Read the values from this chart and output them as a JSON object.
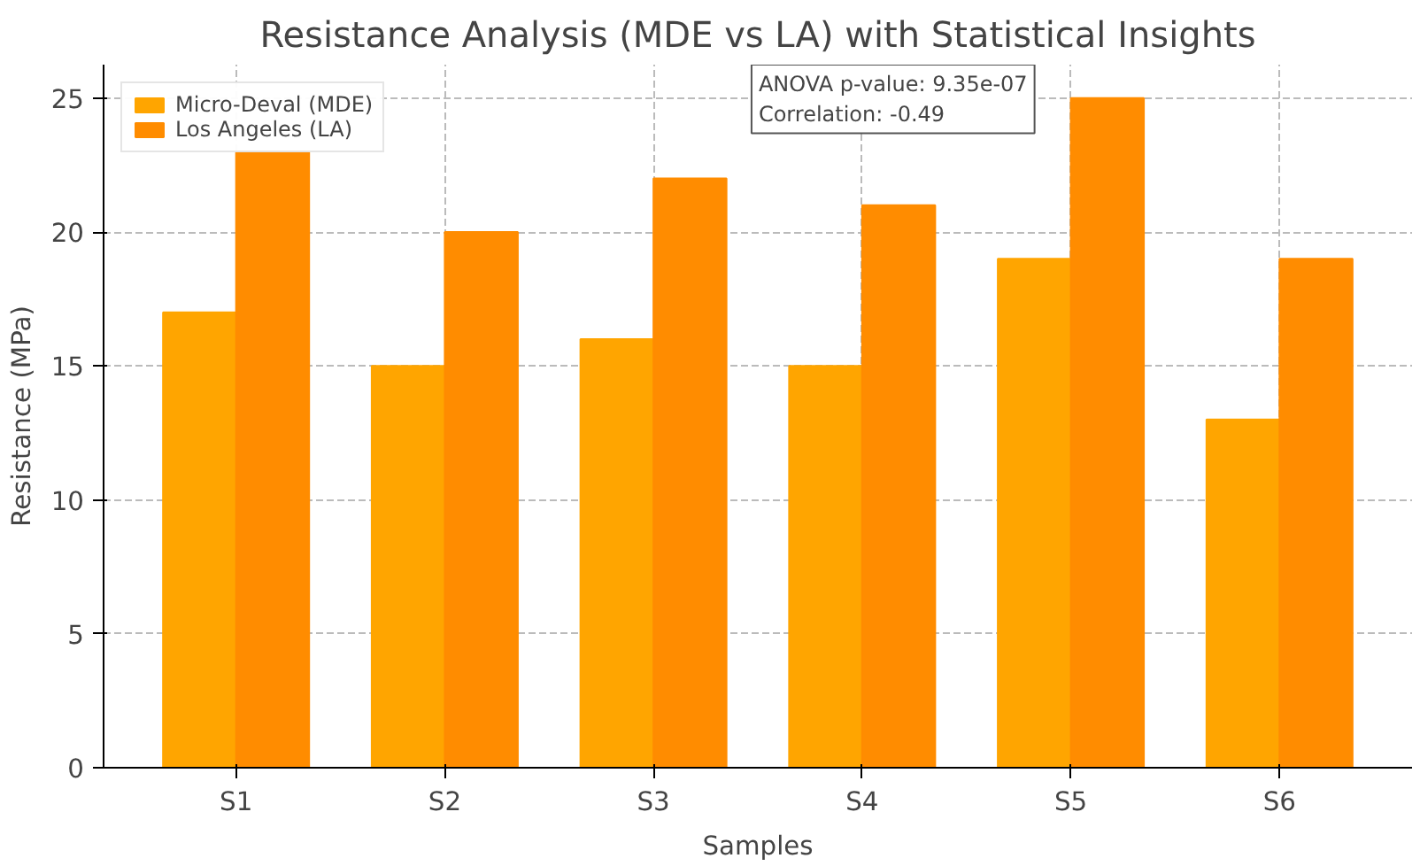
{
  "chart_data": {
    "type": "bar",
    "title": "Resistance Analysis (MDE vs LA) with Statistical Insights",
    "xlabel": "Samples",
    "ylabel": "Resistance (MPa)",
    "categories": [
      "S1",
      "S2",
      "S3",
      "S4",
      "S5",
      "S6"
    ],
    "series": [
      {
        "name": "Micro-Deval (MDE)",
        "color": "#ffa500",
        "values": [
          17,
          15,
          16,
          15,
          19,
          13
        ]
      },
      {
        "name": "Los Angeles (LA)",
        "color": "#ff8c00",
        "values": [
          23,
          20,
          22,
          21,
          25,
          19
        ]
      }
    ],
    "ylim": [
      0,
      26.25
    ],
    "yticks": [
      0,
      5,
      10,
      15,
      20,
      25
    ],
    "grid": true,
    "legend": "top left",
    "annotations": [
      "ANOVA p-value: 9.35e-07\nCorrelation: -0.49"
    ]
  }
}
